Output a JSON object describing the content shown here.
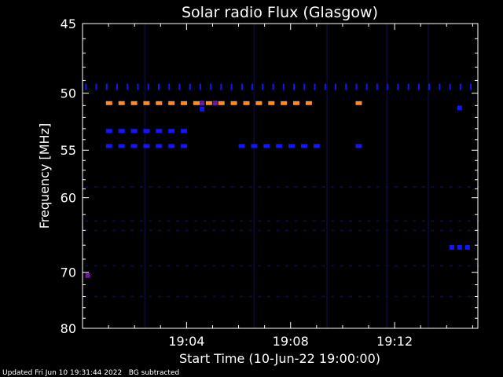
{
  "chart_data": {
    "type": "heatmap",
    "title": "Solar radio Flux (Glasgow)",
    "xlabel": "Start Time (10-Jun-22 19:00:00)",
    "ylabel": "Frequency [MHz]",
    "x_range_minutes": [
      0,
      15.2
    ],
    "ylim": [
      45,
      80
    ],
    "yscale": "reciprocal",
    "x_ticks": [
      {
        "minute": 4,
        "label": "19:04"
      },
      {
        "minute": 8,
        "label": "19:08"
      },
      {
        "minute": 12,
        "label": "19:12"
      }
    ],
    "y_ticks": [
      {
        "value": 45,
        "label": "45"
      },
      {
        "value": 50,
        "label": "50"
      },
      {
        "value": 55,
        "label": "55"
      },
      {
        "value": 60,
        "label": "60"
      },
      {
        "value": 70,
        "label": "70"
      },
      {
        "value": 80,
        "label": "80"
      }
    ],
    "colors": {
      "background": "#000000",
      "axes": "#ffffff",
      "faint": "#0a0a3c",
      "blue": "#1414ff",
      "purple": "#6a1aa0",
      "orange": "#ff8c28"
    },
    "bands": [
      {
        "freq": 49.5,
        "x_start": 0.1,
        "x_end": 15.1,
        "spacing": 0.4,
        "color": "blue",
        "style": "ticks"
      },
      {
        "freq": 50.8,
        "x_start": 0.9,
        "x_end": 9.0,
        "spacing": 0.48,
        "color": "orange",
        "style": "dash"
      },
      {
        "freq": 50.8,
        "x_start": 10.5,
        "x_end": 10.7,
        "spacing": 0.48,
        "color": "orange",
        "style": "dash"
      },
      {
        "freq": 53.2,
        "x_start": 0.9,
        "x_end": 4.1,
        "spacing": 0.48,
        "color": "blue",
        "style": "dash"
      },
      {
        "freq": 54.6,
        "x_start": 0.9,
        "x_end": 4.1,
        "spacing": 0.48,
        "color": "blue",
        "style": "dash"
      },
      {
        "freq": 54.6,
        "x_start": 6.0,
        "x_end": 9.0,
        "spacing": 0.48,
        "color": "blue",
        "style": "dash"
      },
      {
        "freq": 54.6,
        "x_start": 10.5,
        "x_end": 10.7,
        "spacing": 0.48,
        "color": "blue",
        "style": "dash"
      }
    ],
    "spots": [
      {
        "minute": 4.6,
        "freq": 50.8,
        "color": "purple"
      },
      {
        "minute": 5.1,
        "freq": 50.8,
        "color": "purple"
      },
      {
        "minute": 4.6,
        "freq": 51.3,
        "color": "blue"
      },
      {
        "minute": 14.5,
        "freq": 51.2,
        "color": "blue"
      },
      {
        "minute": 0.2,
        "freq": 70.5,
        "color": "purple"
      },
      {
        "minute": 14.2,
        "freq": 66.3,
        "color": "blue"
      },
      {
        "minute": 14.5,
        "freq": 66.3,
        "color": "blue"
      },
      {
        "minute": 14.8,
        "freq": 66.3,
        "color": "blue"
      }
    ],
    "faint_rows": [
      58.8,
      62.8,
      64.0,
      69.0,
      74.0
    ],
    "faint_columns": [
      2.4,
      6.6,
      9.4,
      11.7,
      13.3
    ]
  },
  "footer": {
    "updated": "Updated Fri Jun 10 19:31:44 2022",
    "note": "BG subtracted"
  }
}
